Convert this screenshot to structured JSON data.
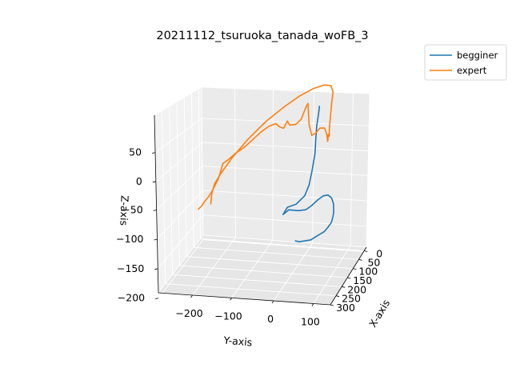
{
  "chart_data": {
    "type": "line",
    "projection": "3d",
    "title": "20211112_tsuruoka_tanada_woFB_3",
    "xlabel": "X-axis",
    "ylabel": "Y-axis",
    "zlabel": "Z-axis",
    "x_ticks": [
      "0",
      "50",
      "100",
      "150",
      "200",
      "250",
      "300"
    ],
    "y_ticks": [
      "−200",
      "−100",
      "0",
      "100"
    ],
    "z_ticks": [
      "50",
      "0",
      "−50",
      "−100",
      "−150",
      "−200"
    ],
    "legend_placement": "top-right",
    "grid": true,
    "series": [
      {
        "name": "begginer",
        "color": "#1f77b4",
        "points": [
          [
            40,
            -30,
            -196
          ],
          [
            38,
            -20,
            -198
          ],
          [
            36,
            -5,
            -196
          ],
          [
            33,
            10,
            -194
          ],
          [
            31,
            25,
            -186
          ],
          [
            28,
            45,
            -176
          ],
          [
            25,
            55,
            -166
          ],
          [
            21,
            62,
            -158
          ],
          [
            17,
            65,
            -147
          ],
          [
            13,
            66,
            -137
          ],
          [
            9,
            64,
            -121
          ],
          [
            7,
            58,
            -109
          ],
          [
            6,
            48,
            -104
          ],
          [
            7,
            36,
            -106
          ],
          [
            10,
            22,
            -114
          ],
          [
            13,
            5,
            -127
          ],
          [
            15,
            -10,
            -136
          ],
          [
            16,
            -30,
            -139
          ],
          [
            20,
            -55,
            -137
          ],
          [
            23,
            -70,
            -147
          ],
          [
            17,
            -60,
            -133
          ],
          [
            12,
            -38,
            -127
          ],
          [
            7,
            -16,
            -109
          ],
          [
            3,
            -5,
            -86
          ],
          [
            1,
            3,
            -54
          ],
          [
            -2,
            10,
            -19
          ],
          [
            -5,
            12,
            17
          ],
          [
            -7,
            14,
            42
          ],
          [
            -10,
            18,
            66
          ],
          [
            -12,
            20,
            82
          ]
        ]
      },
      {
        "name": "expert",
        "color": "#ff7f0e",
        "points": [
          [
            -5,
            -280,
            -147
          ],
          [
            0,
            -275,
            -121
          ],
          [
            2,
            -266,
            -99
          ],
          [
            4,
            -248,
            -75
          ],
          [
            6,
            -215,
            -37
          ],
          [
            8,
            -170,
            7
          ],
          [
            10,
            -120,
            49
          ],
          [
            12,
            -70,
            84
          ],
          [
            14,
            -25,
            112
          ],
          [
            16,
            15,
            132
          ],
          [
            18,
            45,
            142
          ],
          [
            20,
            65,
            143
          ],
          [
            24,
            72,
            130
          ],
          [
            28,
            70,
            112
          ],
          [
            33,
            68,
            82
          ],
          [
            37,
            66,
            58
          ],
          [
            42,
            67,
            40
          ],
          [
            45,
            66,
            46
          ],
          [
            50,
            66,
            32
          ],
          [
            48,
            63,
            47
          ],
          [
            43,
            55,
            58
          ],
          [
            37,
            40,
            55
          ],
          [
            30,
            25,
            40
          ],
          [
            24,
            12,
            32
          ],
          [
            19,
            3,
            53
          ],
          [
            13,
            -2,
            97
          ],
          [
            9,
            -10,
            85
          ],
          [
            10,
            -22,
            60
          ],
          [
            9,
            -38,
            47
          ],
          [
            7,
            -55,
            44
          ],
          [
            6,
            -62,
            52
          ],
          [
            7,
            -72,
            36
          ],
          [
            9,
            -82,
            39
          ],
          [
            12,
            -92,
            47
          ],
          [
            15,
            -110,
            41
          ],
          [
            18,
            -130,
            29
          ],
          [
            20,
            -152,
            12
          ],
          [
            21,
            -175,
            -6
          ],
          [
            20,
            -200,
            -21
          ],
          [
            20,
            -220,
            -36
          ],
          [
            22,
            -235,
            -45
          ],
          [
            22,
            -240,
            -59
          ],
          [
            21,
            -248,
            -79
          ],
          [
            23,
            -258,
            -96
          ],
          [
            24,
            -268,
            -111
          ],
          [
            25,
            -276,
            -121
          ],
          [
            27,
            -286,
            -131
          ],
          [
            27,
            -292,
            -139
          ],
          [
            32,
            -300,
            -145
          ]
        ]
      }
    ]
  }
}
